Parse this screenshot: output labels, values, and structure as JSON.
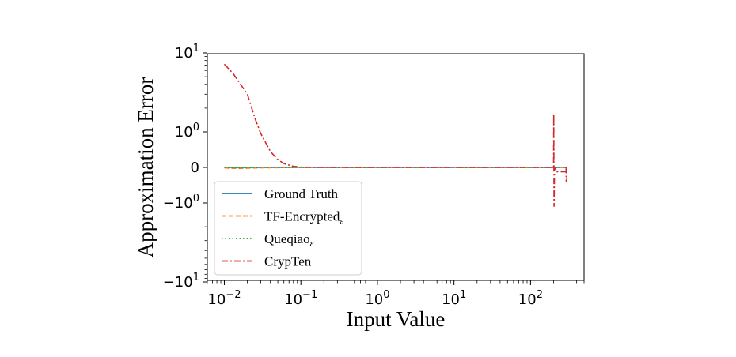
{
  "chart_data": {
    "type": "line",
    "xlabel": "Input Value",
    "ylabel": "Approximation Error",
    "xscale": "log",
    "yscale": "symlog",
    "xlim": [
      0.006,
      500
    ],
    "ylim": [
      -10,
      10
    ],
    "x_ticks": [
      {
        "value": 0.01,
        "base": "10",
        "exp": "−2"
      },
      {
        "value": 0.1,
        "base": "10",
        "exp": "−1"
      },
      {
        "value": 1,
        "base": "10",
        "exp": "0"
      },
      {
        "value": 10,
        "base": "10",
        "exp": "1"
      },
      {
        "value": 100,
        "base": "10",
        "exp": "2"
      }
    ],
    "y_ticks": [
      {
        "value": 10,
        "base": "10",
        "exp": "1"
      },
      {
        "value": 1,
        "base": "10",
        "exp": "0"
      },
      {
        "value": 0,
        "base": "0",
        "exp": ""
      },
      {
        "value": -1,
        "base": "−10",
        "exp": "0"
      },
      {
        "value": -10,
        "base": "−10",
        "exp": "1"
      }
    ],
    "legend_position": "lower-left",
    "series": [
      {
        "name": "Ground Truth",
        "legend_main": "Ground Truth",
        "legend_sub": "",
        "color": "#1f77b4",
        "dash": "solid",
        "points": [
          [
            0.01,
            0
          ],
          [
            300,
            0
          ]
        ]
      },
      {
        "name": "TF-Encryptedε",
        "legend_main": "TF-Encrypted",
        "legend_sub": "ε",
        "color": "#ff7f0e",
        "dash": "dashed",
        "points": [
          [
            0.01,
            -0.01
          ],
          [
            0.012,
            -0.025
          ],
          [
            0.015,
            -0.03
          ],
          [
            0.02,
            -0.02
          ],
          [
            0.03,
            -0.012
          ],
          [
            0.05,
            -0.006
          ],
          [
            0.1,
            0
          ],
          [
            300,
            0
          ]
        ]
      },
      {
        "name": "Queqiaoε",
        "legend_main": "Queqiao",
        "legend_sub": "ε",
        "color": "#2ca02c",
        "dash": "dotted",
        "points": [
          [
            0.01,
            -0.005
          ],
          [
            0.015,
            -0.012
          ],
          [
            0.02,
            -0.008
          ],
          [
            0.04,
            -0.004
          ],
          [
            0.1,
            0
          ],
          [
            300,
            0
          ]
        ]
      },
      {
        "name": "CrypTen",
        "legend_main": "CrypTen",
        "legend_sub": "",
        "color": "#d62728",
        "dash": "dashdot",
        "points": [
          [
            0.01,
            7.2
          ],
          [
            0.013,
            5.5
          ],
          [
            0.016,
            4.1
          ],
          [
            0.02,
            3.0
          ],
          [
            0.025,
            1.5
          ],
          [
            0.03,
            0.95
          ],
          [
            0.04,
            0.45
          ],
          [
            0.05,
            0.22
          ],
          [
            0.06,
            0.11
          ],
          [
            0.08,
            0.03
          ],
          [
            0.1,
            0.01
          ],
          [
            0.2,
            0
          ],
          [
            200,
            0
          ],
          [
            201,
            1.7
          ],
          [
            203,
            -1.1
          ],
          [
            206,
            0
          ],
          [
            220,
            -0.12
          ],
          [
            290,
            -0.12
          ],
          [
            291,
            0.05
          ],
          [
            293,
            -0.4
          ],
          [
            300,
            -0.3
          ]
        ]
      }
    ]
  }
}
